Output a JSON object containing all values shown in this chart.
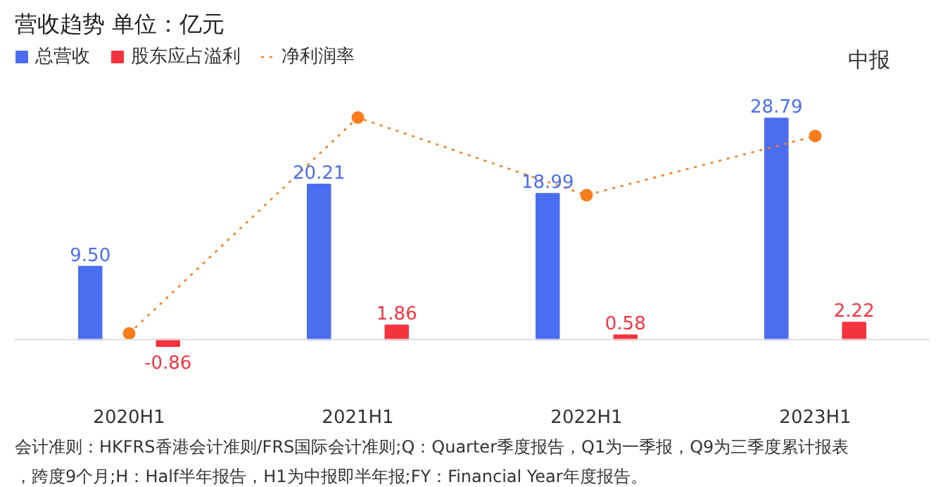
{
  "chart_data": {
    "type": "bar",
    "title": "营收趋势  单位：亿元",
    "categories": [
      "2020H1",
      "2021H1",
      "2022H1",
      "2023H1"
    ],
    "series": [
      {
        "name": "总营收",
        "color": "#4b6ef0",
        "values": [
          9.5,
          20.21,
          18.99,
          28.79
        ],
        "value_labels": [
          "9.50",
          "20.21",
          "18.99",
          "28.79"
        ]
      },
      {
        "name": "股东应占溢利",
        "color": "#f5333f",
        "values": [
          -0.86,
          1.86,
          0.58,
          2.22
        ],
        "value_labels": [
          "-0.86",
          "1.86",
          "0.58",
          "2.22"
        ]
      },
      {
        "name": "净利润率",
        "type": "line",
        "color": "#f97d1c",
        "values": [
          0.8,
          28.9,
          18.8,
          26.5
        ],
        "marker": "circle",
        "line_style": "dotted"
      }
    ],
    "legend": "top left",
    "grid": false,
    "tick_labels": "x",
    "annotations": [
      "中报",
      "会计准则：HKFRS香港会计准则/FRS国际会计准则;Q：Quarter季度报告，Q1为一季报，Q9为三季度累计报表，跨度9个月;H：Half半年报告，H1为中报即半年报;FY：Financial Year年度报告。"
    ]
  }
}
